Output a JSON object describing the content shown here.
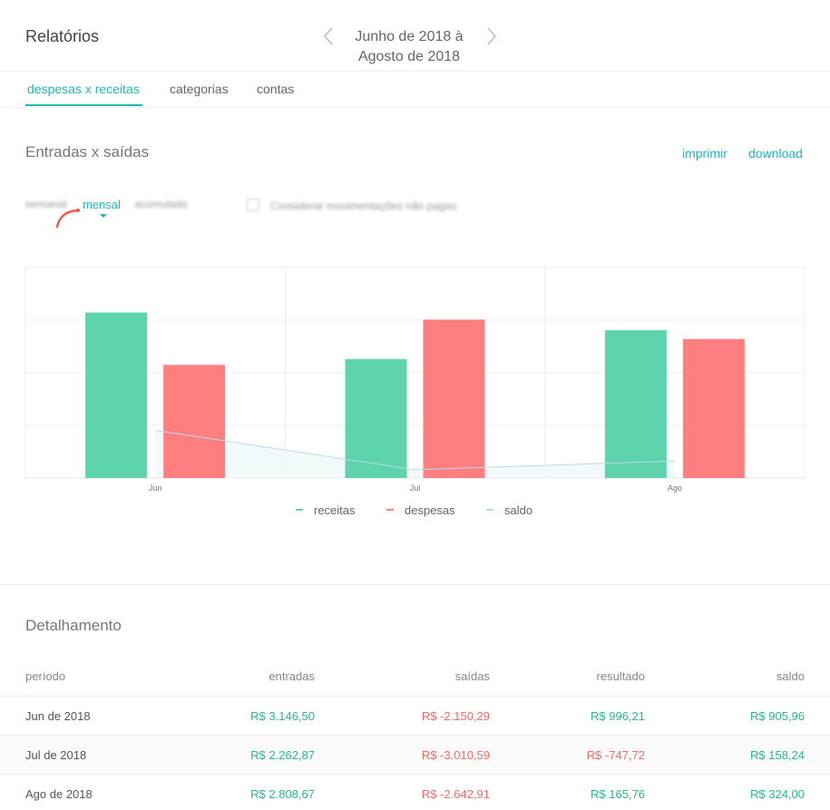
{
  "header": {
    "title": "Relatórios",
    "period_line1": "Junho de 2018 à",
    "period_line2": "Agosto de 2018"
  },
  "tabs": [
    {
      "label": "despesas x receitas",
      "active": true
    },
    {
      "label": "categorias",
      "active": false
    },
    {
      "label": "contas",
      "active": false
    }
  ],
  "section": {
    "title": "Entradas x saídas",
    "print_label": "imprimir",
    "download_label": "download"
  },
  "filters": {
    "weekly": "semanal",
    "monthly": "mensal",
    "cumulative": "acumulado",
    "unpaid_label": "Considerar movimentações não pagas"
  },
  "chart_data": {
    "type": "bar",
    "categories": [
      "Jun",
      "Jul",
      "Ago"
    ],
    "series": [
      {
        "name": "receitas",
        "values": [
          3146.5,
          2262.87,
          2808.67
        ],
        "color": "#5dd4ab"
      },
      {
        "name": "despesas",
        "values": [
          2150.29,
          3010.59,
          2642.91
        ],
        "color": "#ff7f80"
      },
      {
        "name": "saldo",
        "type": "line",
        "values": [
          905.96,
          158.24,
          324.0
        ],
        "color": "#b8dce8"
      }
    ],
    "ylim": [
      0,
      4000
    ],
    "grid": true,
    "legend": "bottom-center"
  },
  "details": {
    "title": "Detalhamento",
    "columns": [
      "período",
      "entradas",
      "saídas",
      "resultado",
      "saldo"
    ],
    "rows": [
      {
        "period": "Jun de 2018",
        "entradas": "R$ 3.146,50",
        "saidas": "R$ -2.150,29",
        "resultado": "R$ 996,21",
        "resultado_sign": "pos",
        "saldo": "R$ 905,96"
      },
      {
        "period": "Jul de 2018",
        "entradas": "R$ 2.262,87",
        "saidas": "R$ -3.010,59",
        "resultado": "R$ -747,72",
        "resultado_sign": "neg",
        "saldo": "R$ 158,24"
      },
      {
        "period": "Ago de 2018",
        "entradas": "R$ 2.808,67",
        "saidas": "R$ -2.642,91",
        "resultado": "R$ 165,76",
        "resultado_sign": "pos",
        "saldo": "R$ 324,00"
      }
    ]
  }
}
